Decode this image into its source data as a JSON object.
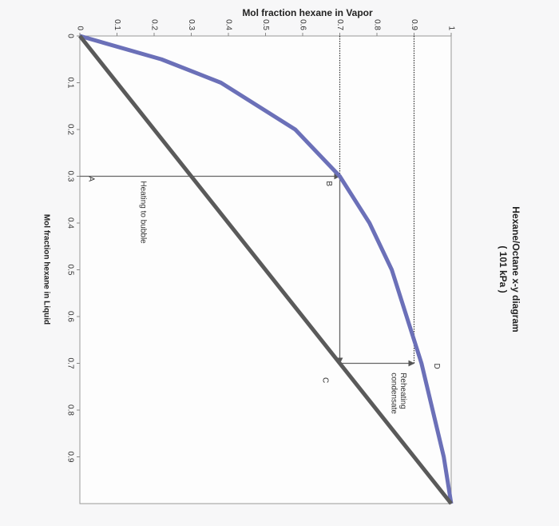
{
  "chart_data": {
    "type": "line",
    "title": "Hexane/Octane x-y diagram",
    "subtitle": "( 101 kPa )",
    "x_label": "Mol fraction hexane in Liquid",
    "y_label": "Mol fraction hexane in Vapor",
    "xlim": [
      0,
      1
    ],
    "ylim": [
      0,
      1
    ],
    "xticks": [
      0,
      0.1,
      0.2,
      0.3,
      0.4,
      0.5,
      0.6,
      0.7,
      0.8,
      0.9
    ],
    "yticks": [
      0,
      0.1,
      0.2,
      0.3,
      0.4,
      0.5,
      0.6,
      0.7,
      0.8,
      0.9,
      1
    ],
    "series": [
      {
        "color": "#6b70b8",
        "x": [
          0,
          0.05,
          0.1,
          0.2,
          0.3,
          0.4,
          0.5,
          0.6,
          0.7,
          0.8,
          0.9,
          1
        ],
        "values": [
          0,
          0.22,
          0.38,
          0.58,
          0.7,
          0.78,
          0.84,
          0.88,
          0.92,
          0.95,
          0.98,
          1
        ]
      },
      {
        "color": "#5a5a5a",
        "x": [
          0,
          1
        ],
        "values": [
          0,
          1
        ]
      }
    ],
    "guide_lines": [
      {
        "x": [
          0.3,
          0.3
        ],
        "y": [
          0,
          0.7
        ],
        "arrow": true,
        "dotted": false
      },
      {
        "x": [
          0.3,
          0.7
        ],
        "y": [
          0.7,
          0.7
        ],
        "arrow": true,
        "dotted": false
      },
      {
        "x": [
          0.7,
          0.7
        ],
        "y": [
          0.7,
          0.9
        ],
        "arrow": true,
        "dotted": false
      },
      {
        "x": [
          0,
          0.3
        ],
        "y": [
          0.7,
          0.7
        ],
        "arrow": false,
        "dotted": true
      },
      {
        "x": [
          0,
          0.7
        ],
        "y": [
          0.9,
          0.9
        ],
        "arrow": false,
        "dotted": true
      }
    ],
    "annotations": [
      {
        "text": "A",
        "x": 0.3,
        "y": 0.03
      },
      {
        "text": "Heating to bubble",
        "x": 0.31,
        "y": 0.17
      },
      {
        "text": "B",
        "x": 0.31,
        "y": 0.67
      },
      {
        "text": "C",
        "x": 0.73,
        "y": 0.66
      },
      {
        "text": "D",
        "x": 0.7,
        "y": 0.96
      },
      {
        "text": "Reheating",
        "x": 0.72,
        "y": 0.87
      },
      {
        "text": "condensate",
        "x": 0.72,
        "y": 0.845
      }
    ]
  }
}
